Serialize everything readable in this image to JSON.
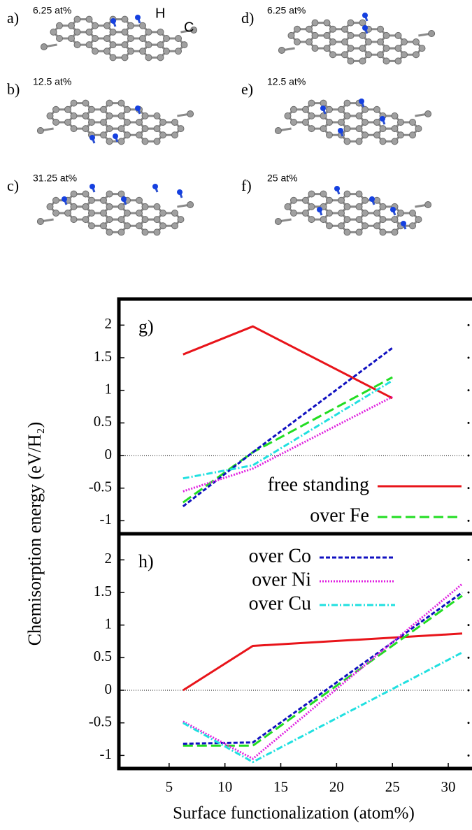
{
  "panels": [
    {
      "label": "a)",
      "concentration": "6.25 at%"
    },
    {
      "label": "b)",
      "concentration": "12.5 at%"
    },
    {
      "label": "c)",
      "concentration": "31.25 at%"
    },
    {
      "label": "d)",
      "concentration": "6.25 at%"
    },
    {
      "label": "e)",
      "concentration": "12.5 at%"
    },
    {
      "label": "f)",
      "concentration": "25 at%"
    }
  ],
  "atom_labels": {
    "hydrogen": "H",
    "carbon": "C"
  },
  "chart_data": [
    {
      "type": "line",
      "panel_label": "g)",
      "ylabel": "Chemisorption energy (eV/H₂)",
      "x": [
        6.25,
        12.5,
        25
      ],
      "xlim": [
        0.5,
        31.5
      ],
      "ylim": [
        -1.2,
        2.4
      ],
      "yticks": [
        2,
        1.5,
        1,
        0.5,
        0,
        -0.5,
        -1
      ],
      "reference_line": 0,
      "legend": "lower right",
      "series": [
        {
          "name": "free standing",
          "color": "#e8141a",
          "dash": "solid",
          "values": [
            1.55,
            1.98,
            0.88
          ]
        },
        {
          "name": "over Fe",
          "color": "#22dd22",
          "dash": "long",
          "values": [
            -0.72,
            0.05,
            1.2
          ]
        },
        {
          "color": "#1010c0",
          "dash": "short",
          "values": [
            -0.78,
            0.05,
            1.65
          ]
        },
        {
          "color": "#e020e0",
          "dash": "dotted",
          "values": [
            -0.55,
            -0.2,
            0.9
          ]
        },
        {
          "color": "#20e0e0",
          "dash": "dashdot",
          "values": [
            -0.35,
            -0.15,
            1.15
          ]
        }
      ]
    },
    {
      "type": "line",
      "panel_label": "h)",
      "xlabel": "Surface functionalization (atom%)",
      "x": [
        6.25,
        12.5,
        31.25
      ],
      "xlim": [
        0.5,
        31.5
      ],
      "ylim": [
        -1.2,
        2.4
      ],
      "xticks": [
        5,
        10,
        15,
        20,
        25,
        30
      ],
      "yticks": [
        2,
        1.5,
        1,
        0.5,
        0,
        -0.5,
        -1
      ],
      "reference_line": 0,
      "legend": "upper left",
      "series": [
        {
          "color": "#e8141a",
          "dash": "solid",
          "values": [
            0,
            0.68,
            0.87
          ]
        },
        {
          "color": "#22dd22",
          "dash": "long",
          "values": [
            -0.85,
            -0.85,
            1.45
          ]
        },
        {
          "name": "over Co",
          "color": "#1010c0",
          "dash": "short",
          "values": [
            -0.82,
            -0.8,
            1.5
          ]
        },
        {
          "name": "over Ni",
          "color": "#e020e0",
          "dash": "dotted",
          "values": [
            -0.48,
            -1.05,
            1.63
          ]
        },
        {
          "name": "over Cu",
          "color": "#20e0e0",
          "dash": "dashdot",
          "values": [
            -0.5,
            -1.1,
            0.58
          ]
        }
      ]
    }
  ]
}
